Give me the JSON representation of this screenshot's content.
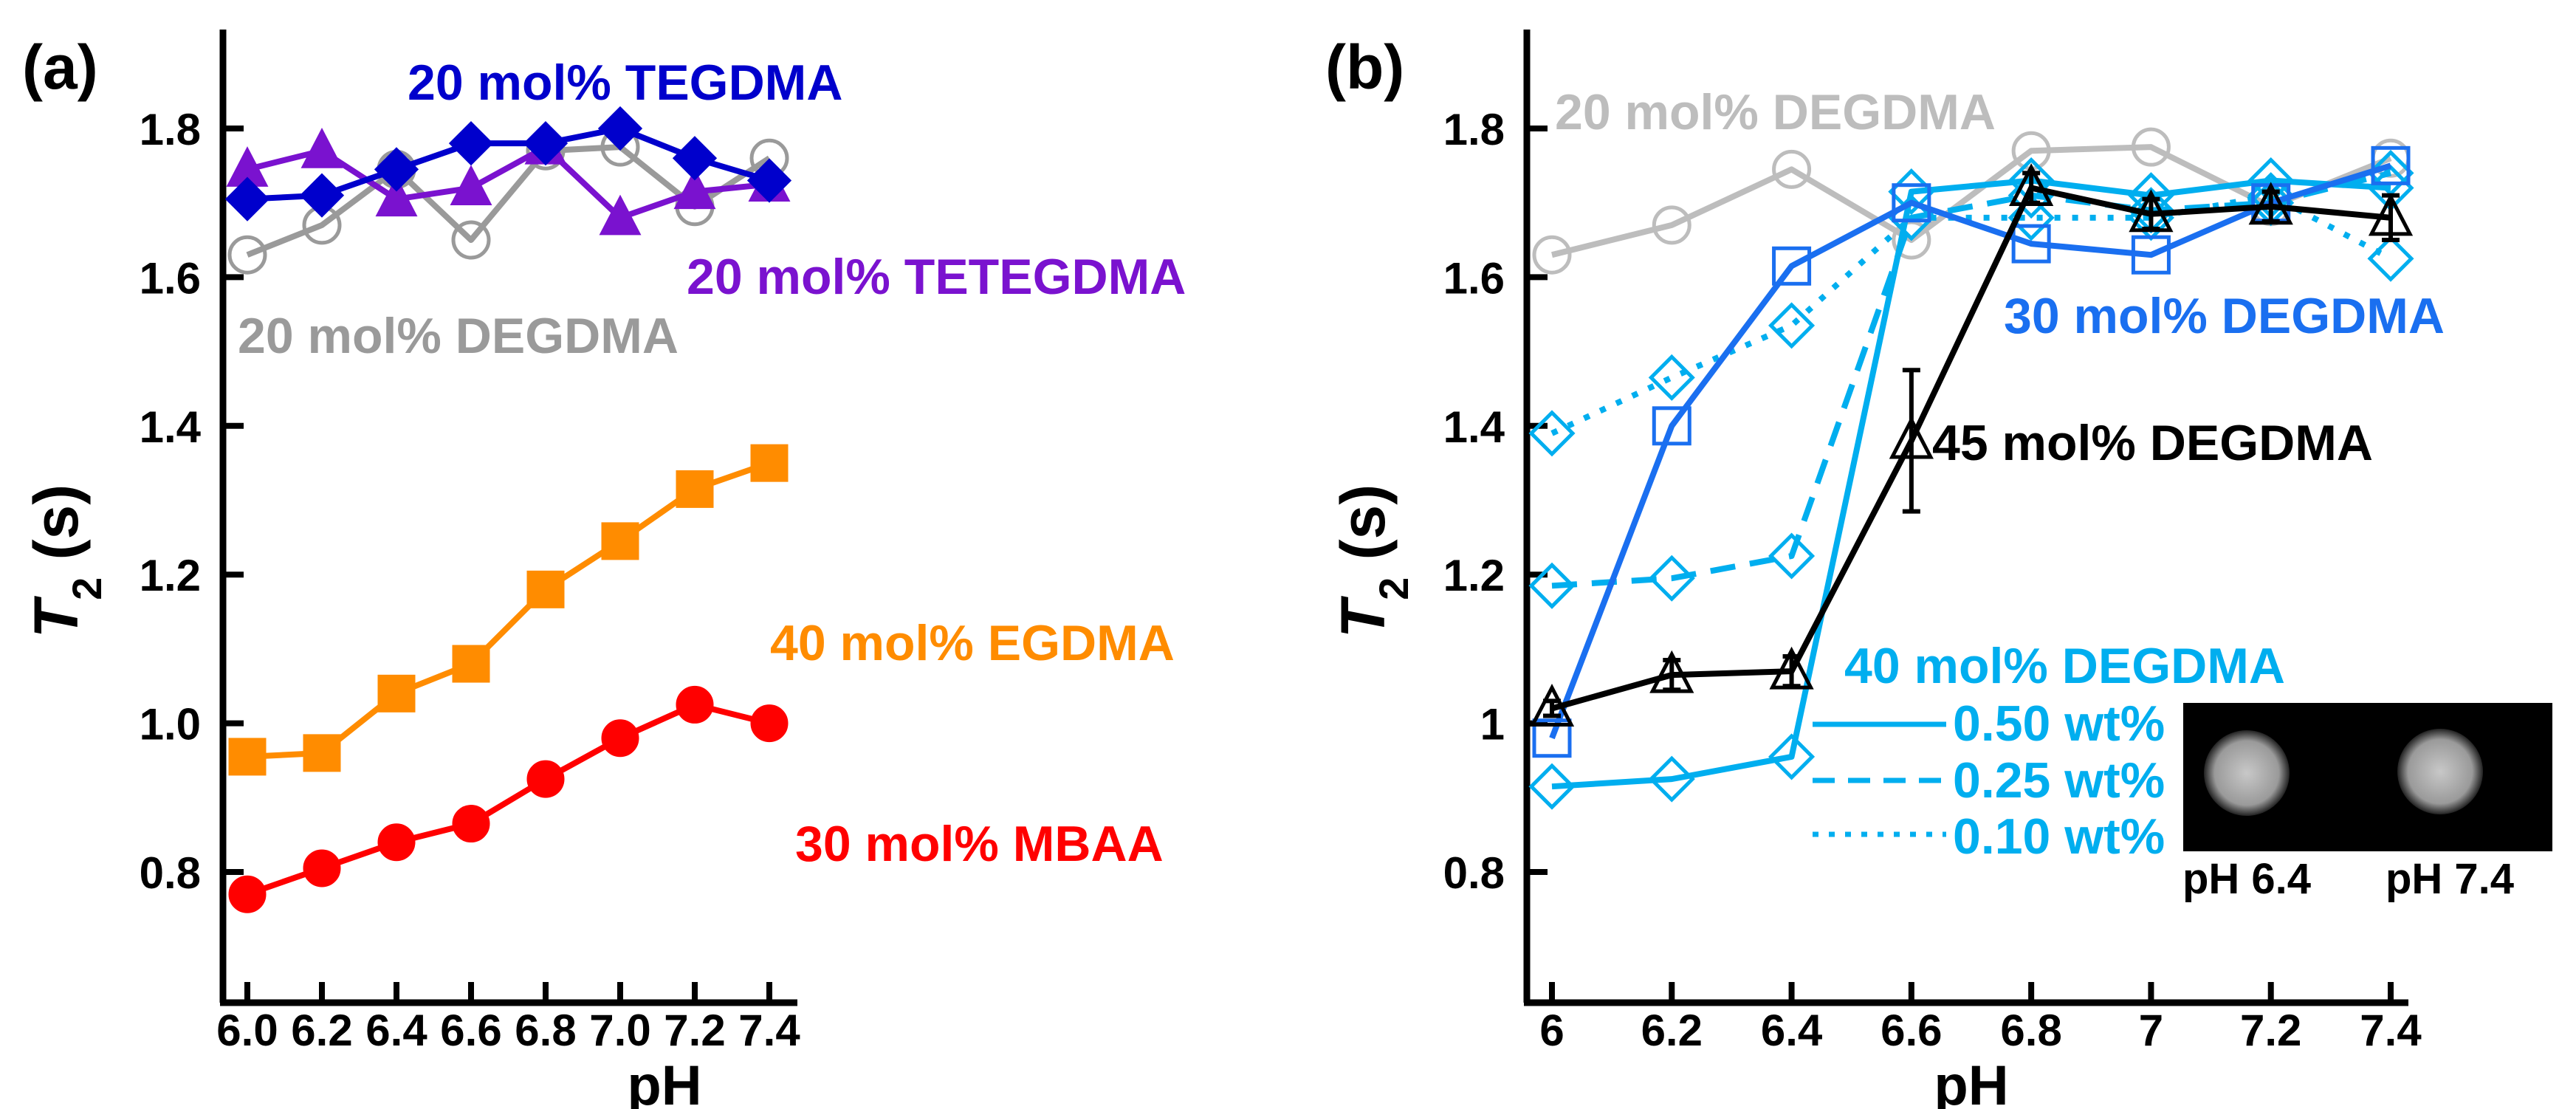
{
  "chart_data": [
    {
      "panel_label": "(a)",
      "type": "line",
      "xlabel": "pH",
      "ylabel_italic": "T",
      "ylabel_sub": "2",
      "ylabel_unit": " (s)",
      "xlim": [
        5.95,
        7.48
      ],
      "ylim": [
        0.73,
        1.91
      ],
      "x": [
        6.0,
        6.2,
        6.4,
        6.6,
        6.8,
        7.0,
        7.2,
        7.4
      ],
      "xtick_labels": [
        "6.0",
        "6.2",
        "6.4",
        "6.6",
        "6.8",
        "7.0",
        "7.2",
        "7.4"
      ],
      "yticks": [
        0.8,
        1.0,
        1.2,
        1.4,
        1.6,
        1.8
      ],
      "ytick_labels": [
        "0.8",
        "1.0",
        "1.2",
        "1.4",
        "1.6",
        "1.8"
      ],
      "series": [
        {
          "name": "20 mol% DEGDMA",
          "color": "#9a9a9a",
          "marker": "circle-open",
          "dash": "solid",
          "values": [
            1.63,
            1.67,
            1.745,
            1.65,
            1.77,
            1.775,
            1.695,
            1.76
          ]
        },
        {
          "name": "20 mol% TETEGDMA",
          "color": "#7a12cf",
          "marker": "triangle-filled",
          "dash": "solid",
          "values": [
            1.745,
            1.77,
            1.705,
            1.72,
            1.775,
            1.68,
            1.715,
            1.725
          ]
        },
        {
          "name": "20 mol% TEGDMA",
          "color": "#0000cc",
          "marker": "diamond-filled",
          "dash": "solid",
          "values": [
            1.705,
            1.71,
            1.745,
            1.78,
            1.78,
            1.8,
            1.76,
            1.73
          ]
        },
        {
          "name": "40 mol% EGDMA",
          "color": "#ff8c00",
          "marker": "square-filled",
          "dash": "solid",
          "values": [
            0.955,
            0.96,
            1.04,
            1.08,
            1.18,
            1.245,
            1.315,
            1.35
          ]
        },
        {
          "name": "30 mol% MBAA",
          "color": "#ff0000",
          "marker": "circle-filled",
          "dash": "solid",
          "values": [
            0.77,
            0.805,
            0.84,
            0.865,
            0.925,
            0.98,
            1.025,
            1.0
          ]
        }
      ],
      "annotations": [
        "20 mol% TEGDMA",
        "20 mol% TETEGDMA",
        "20 mol% DEGDMA",
        "40 mol% EGDMA",
        "30 mol% MBAA"
      ]
    },
    {
      "panel_label": "(b)",
      "type": "line",
      "xlabel": "pH",
      "ylabel_italic": "T",
      "ylabel_sub": "2",
      "ylabel_unit": " (s)",
      "xlim": [
        5.95,
        7.5
      ],
      "ylim": [
        0.73,
        1.91
      ],
      "x": [
        6.0,
        6.2,
        6.4,
        6.6,
        6.8,
        7.0,
        7.2,
        7.4
      ],
      "xtick_labels": [
        "6",
        "6.2",
        "6.4",
        "6.6",
        "6.8",
        "7",
        "7.2",
        "7.4"
      ],
      "yticks": [
        0.8,
        1.0,
        1.2,
        1.4,
        1.6,
        1.8
      ],
      "ytick_labels": [
        "0.8",
        "1",
        "1.2",
        "1.4",
        "1.6",
        "1.8"
      ],
      "series": [
        {
          "name": "20 mol% DEGDMA",
          "color": "#bdbdbd",
          "marker": "circle-open",
          "dash": "solid",
          "values": [
            1.63,
            1.67,
            1.745,
            1.65,
            1.77,
            1.775,
            1.695,
            1.76
          ]
        },
        {
          "name": "40 mol% DEGDMA 0.10 wt%",
          "color": "#00aeef",
          "marker": "diamond-open",
          "dash": "dotted",
          "values": [
            1.39,
            1.465,
            1.535,
            1.68,
            1.68,
            1.68,
            1.71,
            1.625
          ]
        },
        {
          "name": "40 mol% DEGDMA 0.25 wt%",
          "color": "#00aeef",
          "marker": "diamond-open",
          "dash": "dashed",
          "values": [
            1.185,
            1.195,
            1.225,
            1.68,
            1.71,
            1.69,
            1.7,
            1.74
          ]
        },
        {
          "name": "40 mol% DEGDMA 0.50 wt%",
          "color": "#00aeef",
          "marker": "diamond-open",
          "dash": "solid",
          "values": [
            0.915,
            0.925,
            0.955,
            1.715,
            1.73,
            1.71,
            1.73,
            1.72
          ]
        },
        {
          "name": "30 mol% DEGDMA",
          "color": "#1a6ff0",
          "marker": "square-open",
          "dash": "solid",
          "values": [
            0.98,
            1.4,
            1.615,
            1.7,
            1.645,
            1.63,
            1.7,
            1.75
          ]
        },
        {
          "name": "45 mol% DEGDMA",
          "color": "#000000",
          "marker": "triangle-open",
          "dash": "solid",
          "values": [
            1.02,
            1.065,
            1.07,
            1.38,
            1.72,
            1.685,
            1.695,
            1.68
          ],
          "errors": [
            0.01,
            0.02,
            0.02,
            0.095,
            0.02,
            0.02,
            0.02,
            0.03
          ]
        }
      ],
      "annotations": [
        "20 mol% DEGDMA",
        "30 mol% DEGDMA",
        "45 mol% DEGDMA",
        "40 mol% DEGDMA"
      ],
      "legend": {
        "title": "40 mol% DEGDMA",
        "entries": [
          "0.50 wt%",
          "0.25 wt%",
          "0.10 wt%"
        ]
      },
      "inset": {
        "labels": [
          "pH 6.4",
          "pH 7.4"
        ]
      }
    }
  ]
}
